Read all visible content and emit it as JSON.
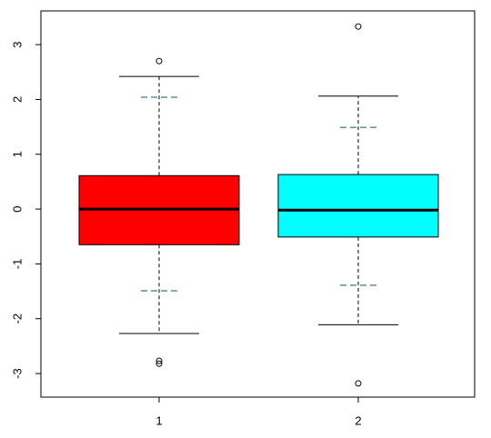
{
  "chart_data": {
    "type": "box",
    "categories": [
      "1",
      "2"
    ],
    "boxes": [
      {
        "color": "#ff0000",
        "whisker_low": -2.27,
        "q1": -0.65,
        "median": 0.0,
        "q3": 0.61,
        "whisker_high": 2.42,
        "outliers": [
          2.7,
          -2.77,
          -2.82
        ],
        "dash_lines": [
          2.04,
          -1.49
        ]
      },
      {
        "color": "#00ffff",
        "whisker_low": -2.11,
        "q1": -0.51,
        "median": -0.02,
        "q3": 0.63,
        "whisker_high": 2.06,
        "outliers": [
          3.33,
          -3.18
        ],
        "dash_lines": [
          1.49,
          -1.39
        ]
      }
    ],
    "dash_color": "#5f8fa0",
    "ylim": [
      -3.43,
      3.615
    ],
    "yticks": [
      -3,
      -2,
      -1,
      0,
      1,
      2,
      3
    ]
  }
}
